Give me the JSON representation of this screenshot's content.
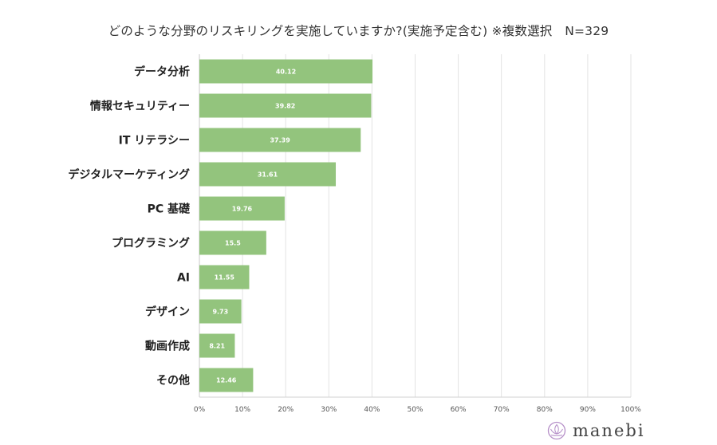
{
  "chart_data": {
    "type": "bar",
    "orientation": "horizontal",
    "title": "どのような分野のリスキリングを実施していますか?(実施予定含む) ※複数選択　N=329",
    "categories": [
      "データ分析",
      "情報セキュリティー",
      "IT リテラシー",
      "デジタルマーケティング",
      "PC 基礎",
      "プログラミング",
      "AI",
      "デザイン",
      "動画作成",
      "その他"
    ],
    "values": [
      40.12,
      39.82,
      37.39,
      31.61,
      19.76,
      15.5,
      11.55,
      9.73,
      8.21,
      12.46
    ],
    "value_labels": [
      "40.12",
      "39.82",
      "37.39",
      "31.61",
      "19.76",
      "15.5",
      "11.55",
      "9.73",
      "8.21",
      "12.46"
    ],
    "xlim": [
      0,
      100
    ],
    "ticks": [
      0,
      10,
      20,
      30,
      40,
      50,
      60,
      70,
      80,
      90,
      100
    ],
    "tick_labels": [
      "0%",
      "10%",
      "20%",
      "30%",
      "40%",
      "50%",
      "60%",
      "70%",
      "80%",
      "90%",
      "100%"
    ],
    "grid": true,
    "bar_color": "#93c47d",
    "grid_color": "#e3e3e3"
  },
  "brand": {
    "name": "manebi",
    "color": "#b58ec8",
    "icon": "lotus-logo-icon"
  }
}
